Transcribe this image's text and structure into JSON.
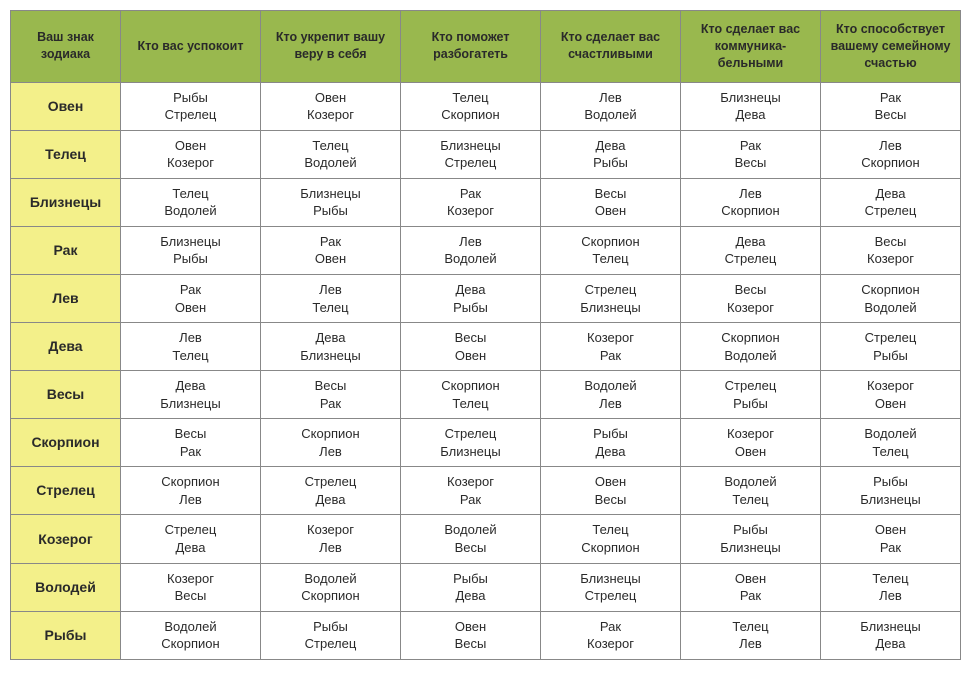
{
  "colors": {
    "header_bg": "#99b84e",
    "rowhead_bg": "#f3f08a",
    "border": "#888888",
    "text": "#2a2a2a",
    "page_bg": "#ffffff"
  },
  "columns": [
    "Ваш знак зодиака",
    "Кто вас успокоит",
    "Кто укрепит вашу веру в себя",
    "Кто поможет разбогатеть",
    "Кто сделает вас счастливыми",
    "Кто сделает вас коммуника-бельными",
    "Кто способствует вашему семейному счастью"
  ],
  "rows": [
    {
      "sign": "Овен",
      "cells": [
        [
          "Рыбы",
          "Стрелец"
        ],
        [
          "Овен",
          "Козерог"
        ],
        [
          "Телец",
          "Скорпион"
        ],
        [
          "Лев",
          "Водолей"
        ],
        [
          "Близнецы",
          "Дева"
        ],
        [
          "Рак",
          "Весы"
        ]
      ]
    },
    {
      "sign": "Телец",
      "cells": [
        [
          "Овен",
          "Козерог"
        ],
        [
          "Телец",
          "Водолей"
        ],
        [
          "Близнецы",
          "Стрелец"
        ],
        [
          "Дева",
          "Рыбы"
        ],
        [
          "Рак",
          "Весы"
        ],
        [
          "Лев",
          "Скорпион"
        ]
      ]
    },
    {
      "sign": "Близнецы",
      "cells": [
        [
          "Телец",
          "Водолей"
        ],
        [
          "Близнецы",
          "Рыбы"
        ],
        [
          "Рак",
          "Козерог"
        ],
        [
          "Весы",
          "Овен"
        ],
        [
          "Лев",
          "Скорпион"
        ],
        [
          "Дева",
          "Стрелец"
        ]
      ]
    },
    {
      "sign": "Рак",
      "cells": [
        [
          "Близнецы",
          "Рыбы"
        ],
        [
          "Рак",
          "Овен"
        ],
        [
          "Лев",
          "Водолей"
        ],
        [
          "Скорпион",
          "Телец"
        ],
        [
          "Дева",
          "Стрелец"
        ],
        [
          "Весы",
          "Козерог"
        ]
      ]
    },
    {
      "sign": "Лев",
      "cells": [
        [
          "Рак",
          "Овен"
        ],
        [
          "Лев",
          "Телец"
        ],
        [
          "Дева",
          "Рыбы"
        ],
        [
          "Стрелец",
          "Близнецы"
        ],
        [
          "Весы",
          "Козерог"
        ],
        [
          "Скорпион",
          "Водолей"
        ]
      ]
    },
    {
      "sign": "Дева",
      "cells": [
        [
          "Лев",
          "Телец"
        ],
        [
          "Дева",
          "Близнецы"
        ],
        [
          "Весы",
          "Овен"
        ],
        [
          "Козерог",
          "Рак"
        ],
        [
          "Скорпион",
          "Водолей"
        ],
        [
          "Стрелец",
          "Рыбы"
        ]
      ]
    },
    {
      "sign": "Весы",
      "cells": [
        [
          "Дева",
          "Близнецы"
        ],
        [
          "Весы",
          "Рак"
        ],
        [
          "Скорпион",
          "Телец"
        ],
        [
          "Водолей",
          "Лев"
        ],
        [
          "Стрелец",
          "Рыбы"
        ],
        [
          "Козерог",
          "Овен"
        ]
      ]
    },
    {
      "sign": "Скорпион",
      "cells": [
        [
          "Весы",
          "Рак"
        ],
        [
          "Скорпион",
          "Лев"
        ],
        [
          "Стрелец",
          "Близнецы"
        ],
        [
          "Рыбы",
          "Дева"
        ],
        [
          "Козерог",
          "Овен"
        ],
        [
          "Водолей",
          "Телец"
        ]
      ]
    },
    {
      "sign": "Стрелец",
      "cells": [
        [
          "Скорпион",
          "Лев"
        ],
        [
          "Стрелец",
          "Дева"
        ],
        [
          "Козерог",
          "Рак"
        ],
        [
          "Овен",
          "Весы"
        ],
        [
          "Водолей",
          "Телец"
        ],
        [
          "Рыбы",
          "Близнецы"
        ]
      ]
    },
    {
      "sign": "Козерог",
      "cells": [
        [
          "Стрелец",
          "Дева"
        ],
        [
          "Козерог",
          "Лев"
        ],
        [
          "Водолей",
          "Весы"
        ],
        [
          "Телец",
          "Скорпион"
        ],
        [
          "Рыбы",
          "Близнецы"
        ],
        [
          "Овен",
          "Рак"
        ]
      ]
    },
    {
      "sign": "Володей",
      "cells": [
        [
          "Козерог",
          "Весы"
        ],
        [
          "Водолей",
          "Скорпион"
        ],
        [
          "Рыбы",
          "Дева"
        ],
        [
          "Близнецы",
          "Стрелец"
        ],
        [
          "Овен",
          "Рак"
        ],
        [
          "Телец",
          "Лев"
        ]
      ]
    },
    {
      "sign": "Рыбы",
      "cells": [
        [
          "Водолей",
          "Скорпион"
        ],
        [
          "Рыбы",
          "Стрелец"
        ],
        [
          "Овен",
          "Весы"
        ],
        [
          "Рак",
          "Козерог"
        ],
        [
          "Телец",
          "Лев"
        ],
        [
          "Близнецы",
          "Дева"
        ]
      ]
    }
  ]
}
